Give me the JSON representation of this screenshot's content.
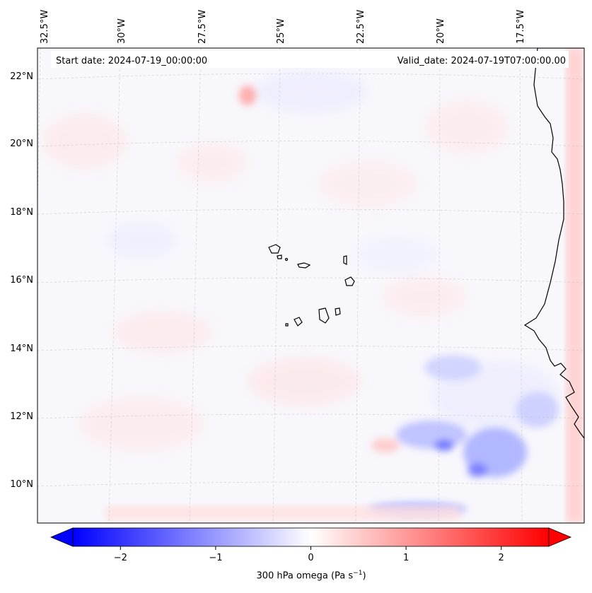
{
  "header": {
    "start_date": "Start date: 2024-07-19_00:00:00",
    "valid_date": "Valid_date: 2024-07-19T07:00:00.00"
  },
  "axes": {
    "lon_labels": [
      "32.5°W",
      "30°W",
      "27.5°W",
      "25°W",
      "22.5°W",
      "20°W",
      "17.5°W"
    ],
    "lat_labels": [
      "22°N",
      "20°N",
      "18°N",
      "16°N",
      "14°N",
      "12°N",
      "10°N"
    ]
  },
  "colorbar": {
    "label": "300 hPa omega (Pa s",
    "label_exp": "−1",
    "label_close": ")",
    "ticks": [
      "−2",
      "−1",
      "0",
      "1",
      "2"
    ],
    "tick_values": [
      -2,
      -1,
      0,
      1,
      2
    ],
    "range": [
      -2.5,
      2.5
    ],
    "cmap": "bwr",
    "extend": "both"
  },
  "colors": {
    "negative": "#0000ff",
    "positive": "#ff0000",
    "zero": "#ffffff",
    "coast": "#000000"
  }
}
